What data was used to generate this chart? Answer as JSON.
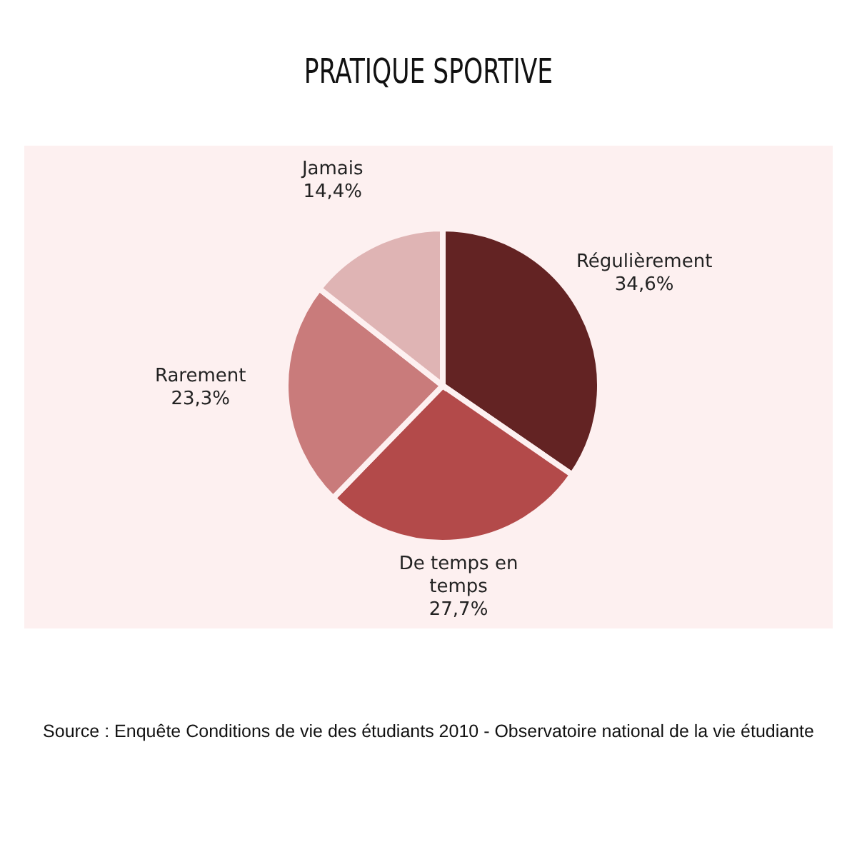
{
  "chart_data": {
    "type": "pie",
    "title": "PRATIQUE SPORTIVE",
    "categories": [
      "Régulièrement",
      "De temps en temps",
      "Rarement",
      "Jamais"
    ],
    "values": [
      34.6,
      27.7,
      23.3,
      14.4
    ],
    "value_labels": [
      "34,6%",
      "27,7%",
      "23,3%",
      "14,4%"
    ],
    "colors": [
      "#632323",
      "#b34a4a",
      "#c97b7b",
      "#dfb4b4"
    ],
    "legend": false,
    "annotations": [
      "Source : Enquête Conditions de vie des étudiants 2010 - Observatoire national de la vie étudiante"
    ]
  }
}
